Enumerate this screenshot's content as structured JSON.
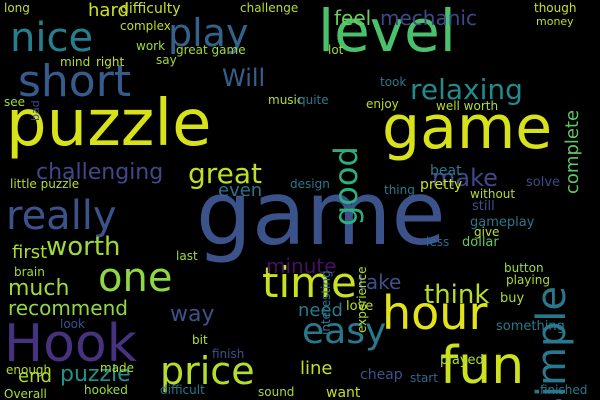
{
  "background": "#000000",
  "words": [
    {
      "id": "game-big",
      "text": "game",
      "color": "#3b528b",
      "vertical": false
    },
    {
      "id": "puzzle",
      "text": "puzzle",
      "color": "#d8e219",
      "vertical": false
    },
    {
      "id": "game-top",
      "text": "game",
      "color": "#d8e219",
      "vertical": false
    },
    {
      "id": "level",
      "text": "level",
      "color": "#4ac16d",
      "vertical": false
    },
    {
      "id": "hook",
      "text": "Hook",
      "color": "#46327e",
      "vertical": false
    },
    {
      "id": "fun",
      "text": "fun",
      "color": "#cde11d",
      "vertical": false
    },
    {
      "id": "short",
      "text": "short",
      "color": "#365c8d",
      "vertical": false
    },
    {
      "id": "hour",
      "text": "hour",
      "color": "#e2e418",
      "vertical": false
    },
    {
      "id": "time",
      "text": "time",
      "color": "#cae11f",
      "vertical": false
    },
    {
      "id": "nice",
      "text": "nice",
      "color": "#277f8e",
      "vertical": false
    },
    {
      "id": "play",
      "text": "play",
      "color": "#33638d",
      "vertical": false
    },
    {
      "id": "simple",
      "text": "simple",
      "color": "#2a788e",
      "vertical": true
    },
    {
      "id": "price",
      "text": "price",
      "color": "#b5de2b",
      "vertical": false
    },
    {
      "id": "really",
      "text": "really",
      "color": "#3b528b",
      "vertical": false
    },
    {
      "id": "one",
      "text": "one",
      "color": "#8fd744",
      "vertical": false
    },
    {
      "id": "easy",
      "text": "easy",
      "color": "#2a788e",
      "vertical": false
    },
    {
      "id": "great",
      "text": "great",
      "color": "#bddf26",
      "vertical": false
    },
    {
      "id": "good",
      "text": "good",
      "color": "#2ab07f",
      "vertical": true
    },
    {
      "id": "relaxing",
      "text": "relaxing",
      "color": "#238a8d",
      "vertical": false
    },
    {
      "id": "challenging",
      "text": "challenging",
      "color": "#3e4989",
      "vertical": false
    },
    {
      "id": "worth",
      "text": "worth",
      "color": "#a0da39",
      "vertical": false
    },
    {
      "id": "make",
      "text": "make",
      "color": "#3e4989",
      "vertical": false
    },
    {
      "id": "think",
      "text": "think",
      "color": "#b5de2b",
      "vertical": false
    },
    {
      "id": "mechanic",
      "text": "mechanic",
      "color": "#3e4989",
      "vertical": false
    },
    {
      "id": "will",
      "text": "Will",
      "color": "#355f8d",
      "vertical": false
    },
    {
      "id": "much",
      "text": "much",
      "color": "#a0da39",
      "vertical": false
    },
    {
      "id": "recommend",
      "text": "recommend",
      "color": "#90d743",
      "vertical": false
    },
    {
      "id": "puzzle-sm",
      "text": "puzzle",
      "color": "#21918c",
      "vertical": false
    },
    {
      "id": "minute",
      "text": "minute",
      "color": "#471063",
      "vertical": false
    },
    {
      "id": "need",
      "text": "need",
      "color": "#2a788e",
      "vertical": false
    },
    {
      "id": "take",
      "text": "take",
      "color": "#3b528b",
      "vertical": false
    },
    {
      "id": "way",
      "text": "way",
      "color": "#3b528b",
      "vertical": false
    },
    {
      "id": "complete",
      "text": "complete",
      "color": "#5ec962",
      "vertical": true
    },
    {
      "id": "feel",
      "text": "feel",
      "color": "#6ccd5a",
      "vertical": false
    },
    {
      "id": "hard",
      "text": "hard",
      "color": "#d0e11c",
      "vertical": false
    },
    {
      "id": "difficulty",
      "text": "difficulty",
      "color": "#cae11f",
      "vertical": false
    },
    {
      "id": "even",
      "text": "even",
      "color": "#2c728e",
      "vertical": false
    },
    {
      "id": "end",
      "text": "end",
      "color": "#addc30",
      "vertical": false
    },
    {
      "id": "first",
      "text": "first",
      "color": "#addc30",
      "vertical": false
    },
    {
      "id": "line",
      "text": "line",
      "color": "#c2df23",
      "vertical": false
    },
    {
      "id": "cheap",
      "text": "cheap",
      "color": "#3b528b",
      "vertical": false
    },
    {
      "id": "great-game",
      "text": "great game",
      "color": "#a0da39",
      "vertical": false
    },
    {
      "id": "pretty",
      "text": "pretty",
      "color": "#c8e020",
      "vertical": false
    },
    {
      "id": "beat",
      "text": "beat",
      "color": "#2a788e",
      "vertical": false
    },
    {
      "id": "gameplay",
      "text": "gameplay",
      "color": "#2a788e",
      "vertical": false
    },
    {
      "id": "still",
      "text": "still",
      "color": "#3b528b",
      "vertical": false
    },
    {
      "id": "solve",
      "text": "solve",
      "color": "#3e4989",
      "vertical": false
    },
    {
      "id": "dollar",
      "text": "dollar",
      "color": "#65cb5e",
      "vertical": false
    },
    {
      "id": "button",
      "text": "button",
      "color": "#a0da39",
      "vertical": false
    },
    {
      "id": "playing",
      "text": "playing",
      "color": "#addc30",
      "vertical": false
    },
    {
      "id": "finished",
      "text": "finished",
      "color": "#2a788e",
      "vertical": false
    },
    {
      "id": "played",
      "text": "played",
      "color": "#addc30",
      "vertical": false
    },
    {
      "id": "something",
      "text": "something",
      "color": "#2a788e",
      "vertical": false
    },
    {
      "id": "buy",
      "text": "buy",
      "color": "#addc30",
      "vertical": false
    },
    {
      "id": "start",
      "text": "start",
      "color": "#31688e",
      "vertical": false
    },
    {
      "id": "love",
      "text": "love",
      "color": "#bddf26",
      "vertical": false
    },
    {
      "id": "made",
      "text": "made",
      "color": "#b5de2b",
      "vertical": false
    },
    {
      "id": "hooked",
      "text": "hooked",
      "color": "#a0da39",
      "vertical": false
    },
    {
      "id": "sound",
      "text": "sound",
      "color": "#a0da39",
      "vertical": false
    },
    {
      "id": "want",
      "text": "want",
      "color": "#bddf26",
      "vertical": false
    },
    {
      "id": "difficult",
      "text": "difficult",
      "color": "#2a788e",
      "vertical": false
    },
    {
      "id": "enough",
      "text": "enough",
      "color": "#b5de2b",
      "vertical": false
    },
    {
      "id": "overall",
      "text": "Overall",
      "color": "#addc30",
      "vertical": false
    },
    {
      "id": "finish",
      "text": "finish",
      "color": "#3b528b",
      "vertical": false
    },
    {
      "id": "look",
      "text": "look",
      "color": "#3b528b",
      "vertical": false
    },
    {
      "id": "bit",
      "text": "bit",
      "color": "#bddf26",
      "vertical": false
    },
    {
      "id": "music",
      "text": "music",
      "color": "#b5de2b",
      "vertical": false
    },
    {
      "id": "enjoy",
      "text": "enjoy",
      "color": "#bddf26",
      "vertical": false
    },
    {
      "id": "well-worth",
      "text": "well worth",
      "color": "#b5de2b",
      "vertical": false
    },
    {
      "id": "took",
      "text": "took",
      "color": "#2a788e",
      "vertical": false
    },
    {
      "id": "lot",
      "text": "lot",
      "color": "#a0da39",
      "vertical": false
    },
    {
      "id": "quite",
      "text": "quite",
      "color": "#2a788e",
      "vertical": false
    },
    {
      "id": "say",
      "text": "say",
      "color": "#a0da39",
      "vertical": false
    },
    {
      "id": "work",
      "text": "work",
      "color": "#a0da39",
      "vertical": false
    },
    {
      "id": "right",
      "text": "right",
      "color": "#cae11f",
      "vertical": false
    },
    {
      "id": "mind",
      "text": "mind",
      "color": "#b5de2b",
      "vertical": false
    },
    {
      "id": "complex",
      "text": "complex",
      "color": "#bddf26",
      "vertical": false
    },
    {
      "id": "challenge",
      "text": "challenge",
      "color": "#b5de2b",
      "vertical": false
    },
    {
      "id": "long",
      "text": "long",
      "color": "#bddf26",
      "vertical": false
    },
    {
      "id": "though",
      "text": "though",
      "color": "#cae11f",
      "vertical": false
    },
    {
      "id": "money",
      "text": "money",
      "color": "#b5de2b",
      "vertical": false
    },
    {
      "id": "design",
      "text": "design",
      "color": "#2a788e",
      "vertical": false
    },
    {
      "id": "thing",
      "text": "thing",
      "color": "#2a788e",
      "vertical": false
    },
    {
      "id": "without",
      "text": "without",
      "color": "#addc30",
      "vertical": false
    },
    {
      "id": "little-puzzle",
      "text": "little puzzle",
      "color": "#b5de2b",
      "vertical": false
    },
    {
      "id": "brain",
      "text": "brain",
      "color": "#a0da39",
      "vertical": false
    },
    {
      "id": "last",
      "text": "last",
      "color": "#a0da39",
      "vertical": false
    },
    {
      "id": "give",
      "text": "give",
      "color": "#bddf26",
      "vertical": false
    },
    {
      "id": "less",
      "text": "less",
      "color": "#31688e",
      "vertical": false
    },
    {
      "id": "experience",
      "text": "experience",
      "color": "#b5de2b",
      "vertical": true
    },
    {
      "id": "see",
      "text": "see",
      "color": "#a0da39",
      "vertical": false
    },
    {
      "id": "interesting",
      "text": "interesting",
      "color": "#2a788e",
      "vertical": true
    },
    {
      "id": "bad",
      "text": "bad",
      "color": "#3e4989",
      "vertical": true
    }
  ]
}
